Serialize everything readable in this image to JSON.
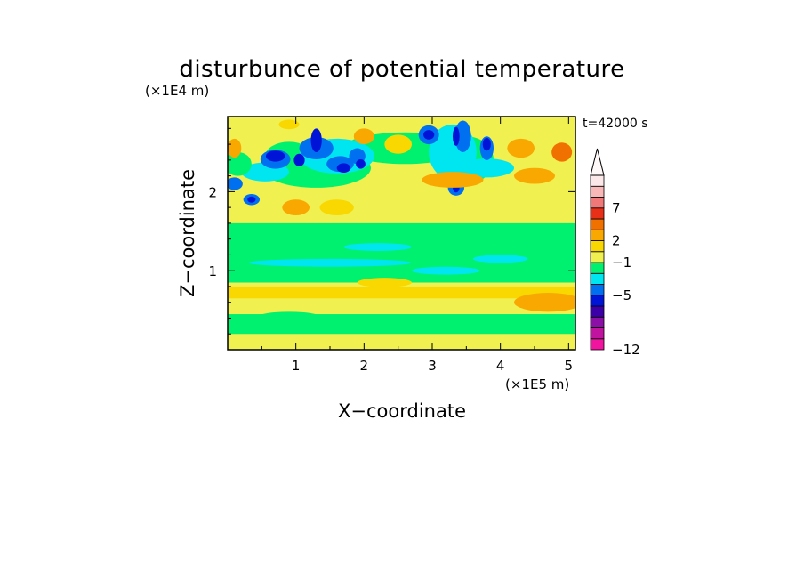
{
  "chart_data": {
    "type": "heatmap",
    "title": "disturbunce of potential temperature",
    "xlabel": "X−coordinate",
    "ylabel": "Z−coordinate",
    "x_scale_label": "(×1E5 m)",
    "y_scale_label": "(×1E4 m)",
    "time_label": "t=42000 s",
    "x_ticks": [
      "1",
      "2",
      "3",
      "4",
      "5"
    ],
    "y_ticks": [
      "1",
      "2"
    ],
    "xlim": [
      0,
      5.1
    ],
    "ylim": [
      0,
      2.95
    ],
    "colorbar": {
      "tick_labels": [
        "7",
        "2",
        "−1",
        "−5",
        "−12"
      ],
      "colors": [
        "#f0149f",
        "#c0139f",
        "#8c0fa8",
        "#3c00a8",
        "#0014d8",
        "#0070f0",
        "#00e6f0",
        "#00f070",
        "#f0f050",
        "#f8d800",
        "#f8a800",
        "#f07000",
        "#e83018",
        "#f07878",
        "#f8b8b8",
        "#fce8e8"
      ],
      "extend": "max"
    },
    "levels": [
      -12,
      -5,
      -1,
      2,
      7
    ],
    "field_colors": {
      "strong_negative": "#0014d8",
      "negative": "#0070f0",
      "weak_negative": "#00e6f0",
      "near_zero": "#00f070",
      "weak_positive": "#f0f050",
      "positive": "#f8d800",
      "strong_positive": "#f8a800",
      "stronger_positive": "#f07000"
    }
  }
}
